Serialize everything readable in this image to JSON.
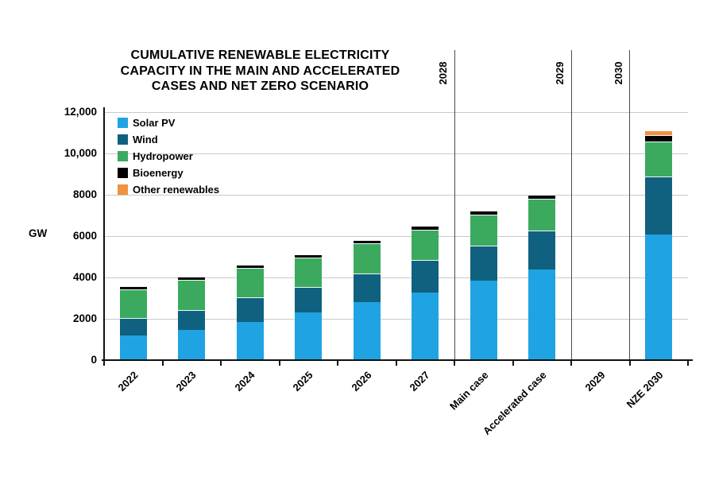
{
  "title": {
    "line1": "CUMULATIVE RENEWABLE ELECTRICITY",
    "line2": "CAPACITY IN THE MAIN AND ACCELERATED",
    "line3": "CASES AND NET ZERO SCENARIO"
  },
  "y_axis": {
    "unit": "GW",
    "tick_labels": [
      "12,000",
      "10,000",
      "8000",
      "6000",
      "4000",
      "2000",
      "0"
    ],
    "tick_values": [
      12000,
      10000,
      8000,
      6000,
      4000,
      2000,
      0
    ]
  },
  "chart_data": {
    "type": "bar",
    "stacked": true,
    "title": "Cumulative renewable electricity capacity in the main and accelerated cases and net zero scenario",
    "ylabel": "GW",
    "ylim": [
      0,
      12000
    ],
    "grid": true,
    "legend_position": "top-left",
    "categories": [
      "2022",
      "2023",
      "2024",
      "2025",
      "2026",
      "2027",
      "Main case",
      "Accelerated case",
      "2029",
      "NZE 2030"
    ],
    "series": [
      {
        "name": "Solar PV",
        "color": "#1FA3E3",
        "values": [
          1180,
          1460,
          1850,
          2310,
          2800,
          3280,
          3830,
          4380,
          0,
          6080
        ]
      },
      {
        "name": "Wind",
        "color": "#10617F",
        "values": [
          840,
          980,
          1200,
          1230,
          1390,
          1560,
          1700,
          1900,
          0,
          2810
        ]
      },
      {
        "name": "Hydropower",
        "color": "#3BAA5F",
        "values": [
          1390,
          1440,
          1400,
          1410,
          1450,
          1470,
          1500,
          1510,
          0,
          1700
        ]
      },
      {
        "name": "Bioenergy",
        "color": "#000000",
        "values": [
          170,
          170,
          180,
          170,
          185,
          200,
          210,
          220,
          0,
          300
        ]
      },
      {
        "name": "Other renewables",
        "color": "#F0923F",
        "values": [
          0,
          0,
          0,
          0,
          0,
          0,
          0,
          0,
          0,
          210
        ]
      }
    ],
    "totals": [
      3580,
      4050,
      4630,
      5120,
      5825,
      6510,
      7240,
      8010,
      0,
      11100
    ],
    "section_dividers": [
      {
        "label": "2028",
        "boundary_index": 6
      },
      {
        "label": "2029",
        "boundary_index": 8
      },
      {
        "label": "2030",
        "boundary_index": 9
      }
    ]
  }
}
